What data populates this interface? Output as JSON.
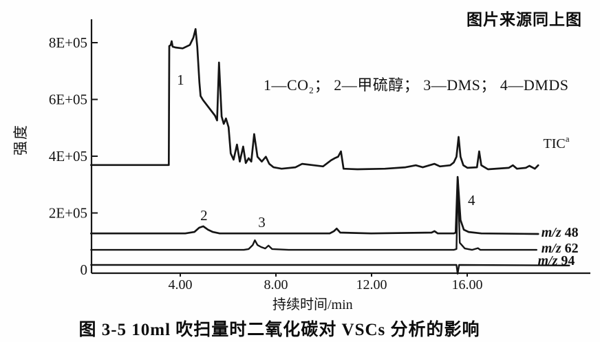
{
  "header": {
    "source_note": "图片来源同上图"
  },
  "caption": "图 3-5  10ml 吹扫量时二氧化碳对 VSCs 分析的影响",
  "chart_data": {
    "type": "line",
    "title": "",
    "xlabel": "持续时间/min",
    "ylabel": "强度",
    "legend": "1—CO₂； 2—甲硫醇； 3—DMS； 4—DMDS",
    "legend_items": [
      {
        "number": "1",
        "name": "CO₂"
      },
      {
        "number": "2",
        "name": "甲硫醇"
      },
      {
        "number": "3",
        "name": "DMS"
      },
      {
        "number": "4",
        "name": "DMDS"
      }
    ],
    "xlim": [
      0.3,
      21.1
    ],
    "ylim": [
      0,
      880000
    ],
    "grid": false,
    "x_ticks": [
      {
        "value": 4,
        "label": "4.00"
      },
      {
        "value": 8,
        "label": "8.00"
      },
      {
        "value": 12,
        "label": "12.00"
      },
      {
        "value": 16,
        "label": "16.00"
      }
    ],
    "y_ticks": [
      {
        "value": 0,
        "label": "0"
      },
      {
        "value": 200000,
        "label": "2E+05"
      },
      {
        "value": 400000,
        "label": "4E+05"
      },
      {
        "value": 600000,
        "label": "6E+05"
      },
      {
        "value": 800000,
        "label": "8E+05"
      }
    ],
    "series": [
      {
        "id": "tic",
        "label": "TIC",
        "label_superscript": "a",
        "label_anchor": {
          "t": 19.18,
          "intensity": 446000
        },
        "points": [
          [
            0.27,
            369000
          ],
          [
            3.52,
            369000
          ],
          [
            3.54,
            788000
          ],
          [
            3.6,
            792000
          ],
          [
            3.64,
            805000
          ],
          [
            3.68,
            786000
          ],
          [
            3.8,
            783000
          ],
          [
            4.1,
            780000
          ],
          [
            4.4,
            792000
          ],
          [
            4.55,
            818000
          ],
          [
            4.64,
            848000
          ],
          [
            4.71,
            786000
          ],
          [
            4.8,
            660000
          ],
          [
            4.85,
            612000
          ],
          [
            4.95,
            598000
          ],
          [
            5.45,
            543000
          ],
          [
            5.54,
            526000
          ],
          [
            5.62,
            730000
          ],
          [
            5.73,
            540000
          ],
          [
            5.82,
            514000
          ],
          [
            5.91,
            533000
          ],
          [
            6.02,
            502000
          ],
          [
            6.11,
            410000
          ],
          [
            6.23,
            388000
          ],
          [
            6.37,
            441000
          ],
          [
            6.49,
            381000
          ],
          [
            6.63,
            434000
          ],
          [
            6.74,
            376000
          ],
          [
            6.86,
            393000
          ],
          [
            6.97,
            381000
          ],
          [
            7.09,
            478000
          ],
          [
            7.23,
            398000
          ],
          [
            7.41,
            381000
          ],
          [
            7.58,
            398000
          ],
          [
            7.72,
            373000
          ],
          [
            7.9,
            361000
          ],
          [
            8.24,
            356000
          ],
          [
            8.82,
            361000
          ],
          [
            9.1,
            373000
          ],
          [
            9.59,
            368000
          ],
          [
            9.97,
            364000
          ],
          [
            10.31,
            386000
          ],
          [
            10.46,
            393000
          ],
          [
            10.6,
            398000
          ],
          [
            10.72,
            417000
          ],
          [
            10.83,
            356000
          ],
          [
            11.41,
            354000
          ],
          [
            12.56,
            356000
          ],
          [
            13.42,
            361000
          ],
          [
            13.85,
            368000
          ],
          [
            14.14,
            361000
          ],
          [
            14.63,
            373000
          ],
          [
            14.86,
            364000
          ],
          [
            15.29,
            368000
          ],
          [
            15.44,
            378000
          ],
          [
            15.55,
            398000
          ],
          [
            15.64,
            468000
          ],
          [
            15.72,
            398000
          ],
          [
            15.84,
            368000
          ],
          [
            16.01,
            359000
          ],
          [
            16.41,
            361000
          ],
          [
            16.5,
            417000
          ],
          [
            16.59,
            368000
          ],
          [
            16.87,
            354000
          ],
          [
            17.74,
            359000
          ],
          [
            17.91,
            368000
          ],
          [
            18.08,
            356000
          ],
          [
            18.45,
            359000
          ],
          [
            18.6,
            366000
          ],
          [
            18.83,
            356000
          ],
          [
            18.97,
            368000
          ]
        ]
      },
      {
        "id": "mz48",
        "label_italic": "m/z",
        "label_rest": " 48",
        "label_anchor": {
          "t": 19.1,
          "intensity": 133000
        },
        "points": [
          [
            0.27,
            128000
          ],
          [
            4.21,
            128000
          ],
          [
            4.59,
            133000
          ],
          [
            4.79,
            148000
          ],
          [
            4.96,
            153000
          ],
          [
            5.16,
            141000
          ],
          [
            5.36,
            133000
          ],
          [
            5.65,
            128000
          ],
          [
            10.25,
            128000
          ],
          [
            10.43,
            136000
          ],
          [
            10.54,
            145000
          ],
          [
            10.69,
            131000
          ],
          [
            11.98,
            128000
          ],
          [
            14.51,
            131000
          ],
          [
            14.63,
            136000
          ],
          [
            14.77,
            128000
          ],
          [
            15.44,
            128000
          ],
          [
            15.52,
            131000
          ],
          [
            15.6,
            327000
          ],
          [
            15.72,
            175000
          ],
          [
            15.86,
            141000
          ],
          [
            16.06,
            133000
          ],
          [
            16.59,
            128000
          ],
          [
            18.97,
            126000
          ]
        ]
      },
      {
        "id": "mz62",
        "label_italic": "m/z",
        "label_rest": " 62",
        "label_anchor": {
          "t": 19.1,
          "intensity": 78000
        },
        "points": [
          [
            0.27,
            70000
          ],
          [
            6.66,
            70000
          ],
          [
            6.86,
            73000
          ],
          [
            7.03,
            87000
          ],
          [
            7.12,
            104000
          ],
          [
            7.23,
            87000
          ],
          [
            7.38,
            80000
          ],
          [
            7.55,
            75000
          ],
          [
            7.69,
            85000
          ],
          [
            7.84,
            73000
          ],
          [
            8.53,
            70000
          ],
          [
            15.44,
            70000
          ],
          [
            15.55,
            73000
          ],
          [
            15.61,
            320000
          ],
          [
            15.69,
            95000
          ],
          [
            15.9,
            75000
          ],
          [
            16.2,
            70000
          ],
          [
            16.45,
            76000
          ],
          [
            16.55,
            70000
          ],
          [
            18.9,
            70000
          ]
        ]
      },
      {
        "id": "mz94",
        "label_italic": "m/z",
        "label_rest": " 94",
        "label_anchor": {
          "t": 18.95,
          "intensity": 34000
        },
        "points": [
          [
            0.27,
            17000
          ],
          [
            15.55,
            17000
          ],
          [
            15.6,
            -14000
          ],
          [
            15.66,
            17000
          ],
          [
            20.27,
            15000
          ]
        ]
      }
    ],
    "peak_labels": [
      {
        "label": "1",
        "t": 4.01,
        "intensity": 672000
      },
      {
        "label": "2",
        "t": 4.99,
        "intensity": 194000
      },
      {
        "label": "3",
        "t": 7.41,
        "intensity": 170000
      },
      {
        "label": "4",
        "t": 16.18,
        "intensity": 247000
      }
    ]
  }
}
